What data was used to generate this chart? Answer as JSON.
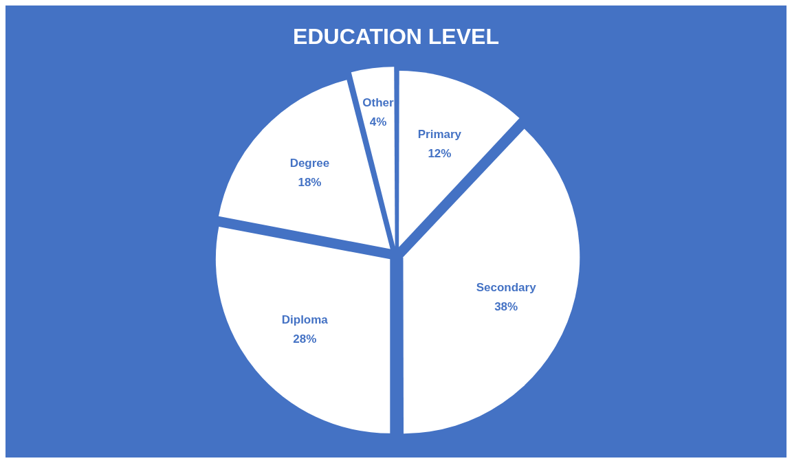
{
  "chart_data": {
    "type": "pie",
    "title": "EDUCATION LEVEL",
    "categories": [
      "Primary",
      "Secondary",
      "Diploma",
      "Degree",
      "Other"
    ],
    "values": [
      12,
      38,
      28,
      18,
      4
    ],
    "colors": [
      "#ffffff",
      "#ffffff",
      "#ffffff",
      "#ffffff",
      "#ffffff"
    ],
    "value_labels": [
      "12%",
      "38%",
      "28%",
      "18%",
      "4%"
    ],
    "legend": false
  }
}
